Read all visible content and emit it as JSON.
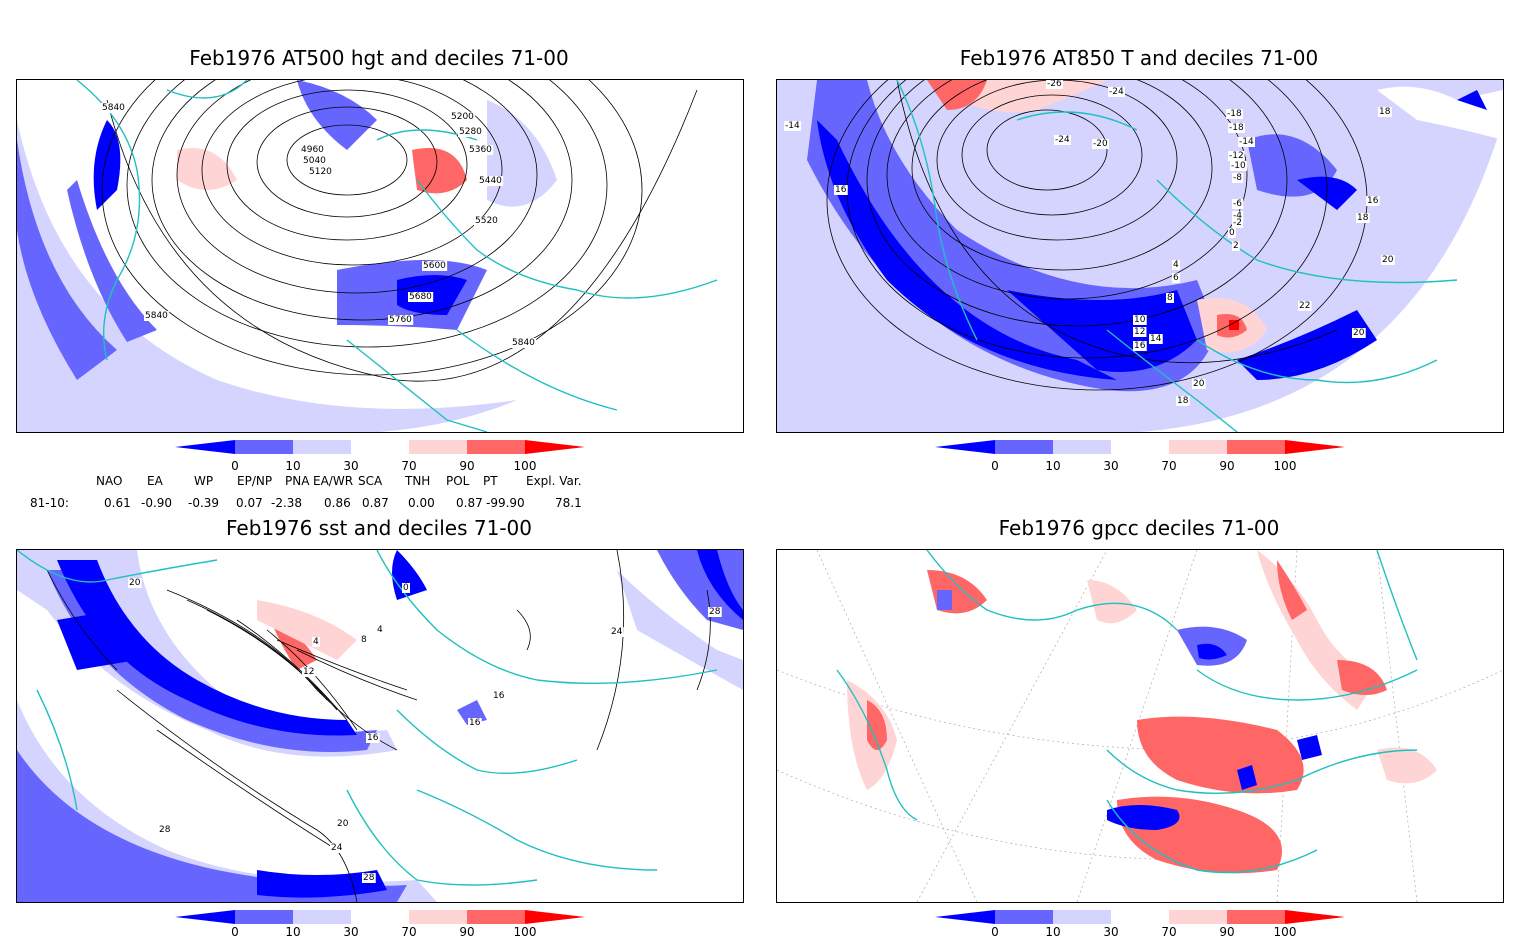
{
  "panels": [
    {
      "id": "p1",
      "title": "Feb1976 AT500 hgt and deciles 71-00",
      "contour_labels": [
        "5840",
        "5840",
        "4960",
        "5040",
        "5120",
        "5200",
        "5280",
        "5360",
        "5440",
        "5520",
        "5600",
        "5680",
        "5760",
        "5840"
      ]
    },
    {
      "id": "p2",
      "title": "Feb1976 AT850 T and deciles 71-00",
      "contour_labels": [
        "-14",
        "16",
        "-26",
        "-24",
        "-24",
        "-20",
        "-18",
        "-18",
        "-14",
        "-12",
        "-10",
        "-8",
        "-6",
        "-4",
        "-2",
        "0",
        "2",
        "4",
        "6",
        "8",
        "10",
        "12",
        "14",
        "16",
        "18",
        "18",
        "16",
        "20",
        "22",
        "20",
        "20",
        "18"
      ]
    },
    {
      "id": "p3",
      "title": "Feb1976 sst and deciles 71-00",
      "contour_labels": [
        "20",
        "0",
        "4",
        "8",
        "12",
        "4",
        "16",
        "16",
        "16",
        "24",
        "28",
        "20",
        "24",
        "28",
        "28"
      ]
    },
    {
      "id": "p4",
      "title": "Feb1976 gpcc deciles 71-00",
      "contour_labels": []
    }
  ],
  "colorbar": {
    "ticks": [
      "0",
      "10",
      "30",
      "70",
      "90",
      "100"
    ],
    "colors": [
      "#0000ff",
      "#6666ff",
      "#d4d4ff",
      "#ffffff",
      "#ffd4d4",
      "#ff6666",
      "#ff0000"
    ]
  },
  "indices": {
    "headers": [
      "NAO",
      "EA",
      "WP",
      "EP/NP",
      "PNA",
      "EA/WR",
      "SCA",
      "TNH",
      "POL",
      "PT",
      "Expl. Var."
    ],
    "row_label": "81-10:",
    "values": [
      "0.61",
      "-0.90",
      "-0.39",
      "0.07",
      "-2.38",
      "0.86",
      "0.87",
      "0.00",
      "0.87",
      "-99.90",
      "78.1"
    ]
  },
  "map_colors": {
    "coast": "#20c0c0",
    "contour": "#000000",
    "grid": "#888888"
  }
}
